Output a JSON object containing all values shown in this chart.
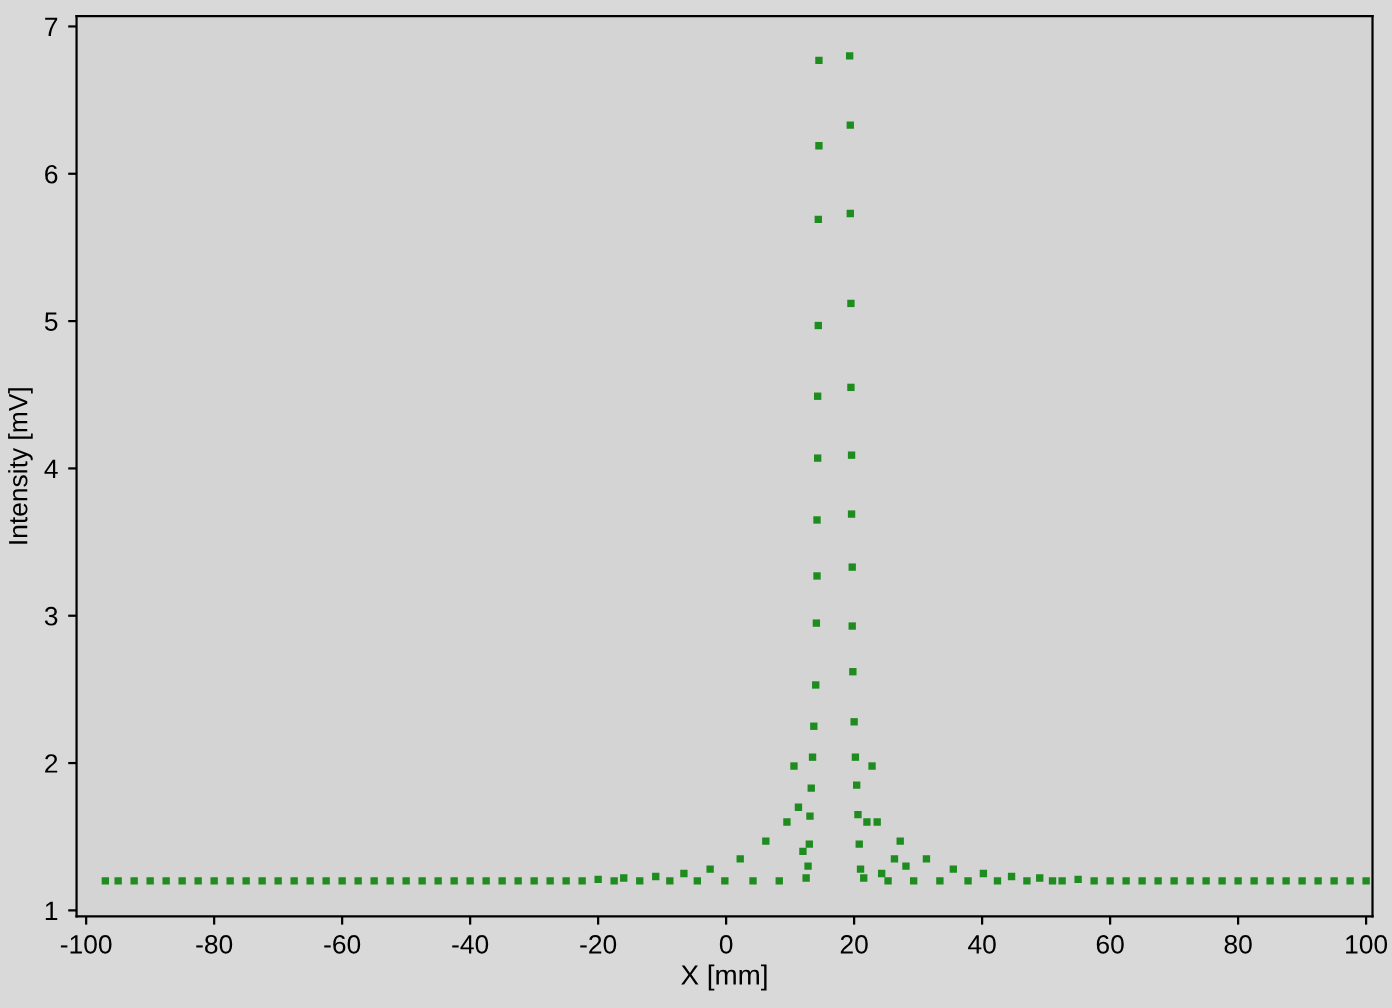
{
  "chart_data": {
    "type": "scatter",
    "xlabel": "X [mm]",
    "ylabel": "Intensity [mV]",
    "xlim": [
      -101.5,
      101
    ],
    "ylim": [
      0.96,
      7.07
    ],
    "xticks": [
      -100,
      -80,
      -60,
      -40,
      -20,
      0,
      20,
      40,
      60,
      80,
      100
    ],
    "yticks": [
      1,
      2,
      3,
      4,
      5,
      6,
      7
    ],
    "grid": false,
    "marker": "square",
    "series": [
      {
        "color": "#1e8c1e",
        "x": [
          -97,
          -95,
          -92.5,
          -90,
          -87.5,
          -85,
          -82.5,
          -80,
          -77.5,
          -75,
          -72.5,
          -70,
          -67.5,
          -65,
          -62.5,
          -60,
          -57.5,
          -55,
          -52.5,
          -50,
          -47.5,
          -45,
          -42.5,
          -40,
          -37.5,
          -35,
          -32.5,
          -30,
          -27.5,
          -25,
          -22.5,
          -20,
          -17.5,
          -16,
          -13.5,
          -11,
          -8.8,
          -6.6,
          -4.5,
          -2.5,
          -0.2,
          2.2,
          4.2,
          6.2,
          8.3,
          9.5,
          10.6,
          11.3,
          12,
          12.5,
          12.8,
          13.0,
          13.1,
          13.3,
          13.5,
          13.7,
          14.0,
          14.1,
          14.2,
          14.2,
          14.3,
          14.3,
          14.4,
          14.4,
          14.5,
          14.5,
          19.3,
          19.4,
          19.4,
          19.5,
          19.5,
          19.6,
          19.6,
          19.7,
          19.7,
          19.8,
          20.0,
          20.2,
          20.4,
          20.6,
          20.8,
          21.0,
          21.5,
          22.0,
          22.8,
          23.6,
          24.3,
          25.3,
          26.3,
          27.2,
          28.1,
          29.3,
          31.3,
          33.4,
          35.5,
          37.8,
          40.2,
          42.4,
          44.6,
          47,
          49,
          51,
          52.5,
          55,
          57.5,
          60,
          62.5,
          65,
          67.5,
          70,
          72.5,
          75,
          77.5,
          80,
          82.5,
          85,
          87.5,
          90,
          92.5,
          95,
          97.5,
          100
        ],
        "values": [
          1.2,
          1.2,
          1.2,
          1.2,
          1.2,
          1.2,
          1.2,
          1.2,
          1.2,
          1.2,
          1.2,
          1.2,
          1.2,
          1.2,
          1.2,
          1.2,
          1.2,
          1.2,
          1.2,
          1.2,
          1.2,
          1.2,
          1.2,
          1.2,
          1.2,
          1.2,
          1.2,
          1.2,
          1.2,
          1.2,
          1.2,
          1.21,
          1.2,
          1.22,
          1.2,
          1.23,
          1.2,
          1.25,
          1.2,
          1.28,
          1.2,
          1.35,
          1.2,
          1.47,
          1.2,
          1.6,
          1.98,
          1.7,
          1.4,
          1.22,
          1.3,
          1.45,
          1.64,
          1.83,
          2.04,
          2.25,
          2.53,
          2.95,
          3.27,
          3.65,
          4.07,
          4.49,
          4.97,
          5.69,
          6.19,
          6.77,
          6.8,
          6.33,
          5.73,
          5.12,
          4.55,
          4.09,
          3.69,
          3.33,
          2.93,
          2.62,
          2.28,
          2.04,
          1.85,
          1.65,
          1.45,
          1.28,
          1.22,
          1.6,
          1.98,
          1.6,
          1.25,
          1.2,
          1.35,
          1.47,
          1.3,
          1.2,
          1.35,
          1.2,
          1.28,
          1.2,
          1.25,
          1.2,
          1.23,
          1.2,
          1.22,
          1.2,
          1.2,
          1.21,
          1.2,
          1.2,
          1.2,
          1.2,
          1.2,
          1.2,
          1.2,
          1.2,
          1.2,
          1.2,
          1.2,
          1.2,
          1.2,
          1.2,
          1.2,
          1.2,
          1.2,
          1.2
        ]
      }
    ]
  }
}
